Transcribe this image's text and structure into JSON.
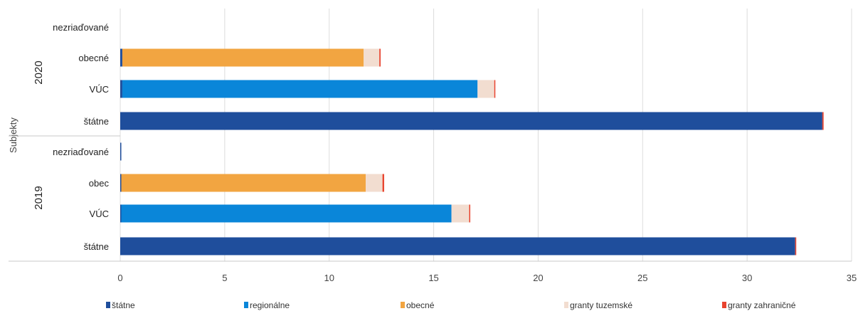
{
  "chart_data": {
    "type": "bar",
    "orientation": "horizontal",
    "stacked": true,
    "ylabel": "Subjekty",
    "xlim": [
      0,
      35
    ],
    "xticks": [
      "0",
      "5",
      "10",
      "15",
      "20",
      "25",
      "30",
      "35"
    ],
    "grid": true,
    "legend_position": "bottom",
    "groups": [
      {
        "name": "2020",
        "categories": [
          "nezriaďované",
          "obecné",
          "VÚC",
          "štátne"
        ]
      },
      {
        "name": "2019",
        "categories": [
          "nezriaďované",
          "obec",
          "VÚC",
          "štátne"
        ]
      }
    ],
    "series": [
      {
        "name": "štátne",
        "color": "#1f4e9c",
        "values": [
          0.0,
          0.1,
          0.1,
          33.6,
          0.05,
          0.05,
          0.05,
          32.3
        ]
      },
      {
        "name": "regionálne",
        "color": "#0a86d9",
        "values": [
          0.0,
          0.0,
          17.0,
          0.0,
          0.0,
          0.0,
          15.8,
          0.0
        ]
      },
      {
        "name": "obecné",
        "color": "#f2a541",
        "values": [
          0.0,
          11.55,
          0.0,
          0.0,
          0.0,
          11.7,
          0.0,
          0.0
        ]
      },
      {
        "name": "granty tuzemské",
        "color": "#f2ddd0",
        "values": [
          0.0,
          0.75,
          0.8,
          0.0,
          0.0,
          0.8,
          0.85,
          0.0
        ]
      },
      {
        "name": "granty zahraničné",
        "color": "#e8432e",
        "values": [
          0.0,
          0.06,
          0.05,
          0.06,
          0.0,
          0.08,
          0.05,
          0.05
        ]
      }
    ]
  }
}
